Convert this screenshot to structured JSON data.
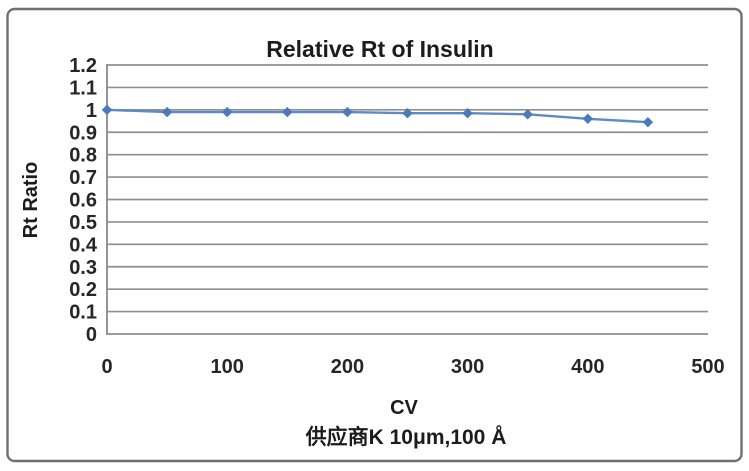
{
  "chart_data": {
    "type": "line",
    "title": "Relative Rt of Insulin",
    "xlabel": "CV",
    "ylabel": "Rt Ratio",
    "caption": "供应商K  10μm,100 Å",
    "x": [
      0,
      50,
      100,
      150,
      200,
      250,
      300,
      350,
      400,
      450
    ],
    "series": [
      {
        "name": "Rt Ratio",
        "values": [
          1.0,
          0.99,
          0.99,
          0.99,
          0.99,
          0.985,
          0.985,
          0.98,
          0.96,
          0.945
        ]
      }
    ],
    "xlim": [
      0,
      500
    ],
    "ylim": [
      0,
      1.2
    ],
    "xticks": [
      0,
      100,
      200,
      300,
      400,
      500
    ],
    "xtick_labels": [
      "0",
      "100",
      "200",
      "300",
      "400",
      "500"
    ],
    "yticks": [
      0,
      0.1,
      0.2,
      0.3,
      0.4,
      0.5,
      0.6,
      0.7,
      0.8,
      0.9,
      1,
      1.1,
      1.2
    ],
    "ytick_labels": [
      "0",
      "0.1",
      "0.2",
      "0.3",
      "0.4",
      "0.5",
      "0.6",
      "0.7",
      "0.8",
      "0.9",
      "1",
      "1.1",
      "1.2"
    ],
    "grid": "horizontal",
    "legend": "none",
    "marker": "diamond",
    "colors": {
      "marker": "#4a7ab8",
      "line": "#5f8bc4",
      "gridline": "#8f8f8f",
      "axis_line": "#8f8f8f",
      "text": "#1c1c1c",
      "frame_border": "#6f6f6f",
      "background": "#ffffff"
    }
  }
}
